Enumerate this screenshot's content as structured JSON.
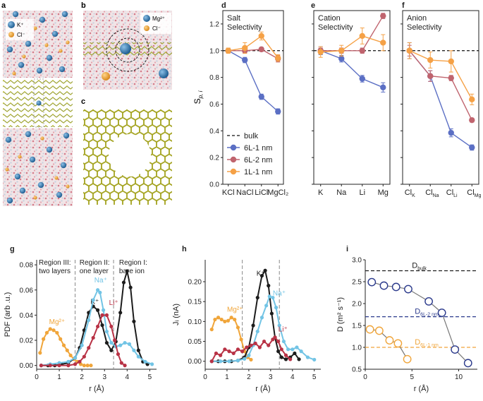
{
  "colors": {
    "blue": "#5b6fc4",
    "red": "#c0646e",
    "orange": "#f5a146",
    "black": "#222222",
    "k_sim": "#2f6fa3",
    "cl_sim": "#e8a23c",
    "mg_orange": "#f0a53a",
    "na_cyan": "#72c4e5",
    "li_red": "#b83245",
    "k_black": "#1c1c1c",
    "navy": "#2b3a8c",
    "mid_gray": "#8a8a8a"
  },
  "panel_labels": {
    "a": "a",
    "b": "b",
    "c": "c",
    "d": "d",
    "e": "e",
    "f": "f",
    "g": "g",
    "h": "h",
    "i": "i"
  },
  "sim": {
    "a_legend": [
      "K⁺",
      "Cl⁻"
    ],
    "b_legend": [
      "Mg²⁺",
      "Cl⁻"
    ]
  },
  "chart_data": [
    {
      "id": "d",
      "type": "line",
      "title": "Salt Selectivity",
      "ylabel": "S_p,i",
      "ylim": [
        0.0,
        1.3
      ],
      "yticks": [
        "0.0",
        "0.2",
        "0.4",
        "0.6",
        "0.8",
        "1.0",
        "1.2"
      ],
      "categories": [
        "KCl",
        "NaCl",
        "LiCl",
        "MgCl₂"
      ],
      "reference": {
        "name": "bulk",
        "value": 1.0
      },
      "series": [
        {
          "name": "6L-1 nm",
          "color": "blue",
          "values": [
            1.0,
            0.93,
            0.655,
            0.545
          ],
          "err": [
            0.015,
            0.02,
            0.02,
            0.02
          ]
        },
        {
          "name": "6L-2 nm",
          "color": "red",
          "values": [
            1.0,
            1.0,
            1.01,
            0.94
          ],
          "err": [
            0.015,
            0.02,
            0.015,
            0.025
          ]
        },
        {
          "name": "1L-1 nm",
          "color": "orange",
          "values": [
            1.0,
            1.02,
            1.11,
            0.945
          ],
          "err": [
            0.02,
            0.04,
            0.03,
            0.025
          ]
        }
      ],
      "legend": [
        "bulk",
        "6L-1 nm",
        "6L-2 nm",
        "1L-1 nm"
      ]
    },
    {
      "id": "e",
      "type": "line",
      "title": "Cation Selectivity",
      "ylim": [
        0.0,
        1.3
      ],
      "categories": [
        "K",
        "Na",
        "Li",
        "Mg"
      ],
      "reference": {
        "name": "bulk",
        "value": 1.0
      },
      "series": [
        {
          "name": "6L-1 nm",
          "color": "blue",
          "values": [
            1.0,
            0.94,
            0.79,
            0.725
          ],
          "err": [
            0.03,
            0.025,
            0.025,
            0.035
          ]
        },
        {
          "name": "6L-2 nm",
          "color": "red",
          "values": [
            1.0,
            1.0,
            1.0,
            1.26
          ],
          "err": [
            0.02,
            0.02,
            0.02,
            0.02
          ]
        },
        {
          "name": "1L-1 nm",
          "color": "orange",
          "values": [
            0.99,
            1.0,
            1.11,
            1.06
          ],
          "err": [
            0.04,
            0.04,
            0.06,
            0.06
          ]
        }
      ]
    },
    {
      "id": "f",
      "type": "line",
      "title": "Anion Selectivity",
      "ylim": [
        0.0,
        1.3
      ],
      "categories": [
        {
          "base": "Cl",
          "sub": "K"
        },
        {
          "base": "Cl",
          "sub": "Na"
        },
        {
          "base": "Cl",
          "sub": "Li"
        },
        {
          "base": "Cl",
          "sub": "Mg"
        }
      ],
      "reference": {
        "name": "bulk",
        "value": 1.0
      },
      "series": [
        {
          "name": "6L-1 nm",
          "color": "blue",
          "values": [
            1.0,
            0.81,
            0.385,
            0.275
          ],
          "err": [
            0.06,
            0.04,
            0.03,
            0.02
          ]
        },
        {
          "name": "6L-2 nm",
          "color": "red",
          "values": [
            1.0,
            0.81,
            0.795,
            0.48
          ],
          "err": [
            0.04,
            0.04,
            0.02,
            0.015
          ]
        },
        {
          "name": "1L-1 nm",
          "color": "orange",
          "values": [
            1.0,
            0.93,
            0.92,
            0.635
          ],
          "err": [
            0.06,
            0.06,
            0.08,
            0.04
          ]
        }
      ]
    },
    {
      "id": "g",
      "type": "line",
      "xlabel": "r (Å)",
      "ylabel": "PDF (arb .u.)",
      "xlim": [
        0.0,
        5.3
      ],
      "ylim": [
        -0.003,
        0.084
      ],
      "xticks": [
        "0",
        "1",
        "2",
        "3",
        "4",
        "5"
      ],
      "yticks": [
        "0.00",
        "0.02",
        "0.04",
        "0.06",
        "0.08"
      ],
      "dividers": [
        1.7,
        3.4
      ],
      "regions": [
        {
          "lines": [
            "Region III:",
            "two layers"
          ],
          "at": 0.0
        },
        {
          "lines": [
            "Region II:",
            "one layer"
          ],
          "at": 1.8
        },
        {
          "lines": [
            "Region I:",
            "bare ion"
          ],
          "at": 3.55
        }
      ],
      "series": [
        {
          "name": "Mg²⁺",
          "color": "mg_orange",
          "label_at": [
            0.55,
            0.033
          ],
          "x": [
            0.15,
            0.3,
            0.45,
            0.6,
            0.75,
            0.9,
            1.05,
            1.2,
            1.35,
            1.5,
            1.65,
            1.8,
            1.95,
            2.1,
            2.25,
            2.4
          ],
          "y": [
            0.01,
            0.021,
            0.026,
            0.029,
            0.028,
            0.026,
            0.021,
            0.016,
            0.012,
            0.008,
            0.005,
            0.003,
            0.001,
            0.0,
            0.0,
            0.0
          ]
        },
        {
          "name": "K⁺",
          "color": "k_black",
          "label_at": [
            2.38,
            0.049
          ],
          "x": [
            0.2,
            0.5,
            0.8,
            1.1,
            1.4,
            1.7,
            1.9,
            2.1,
            2.3,
            2.5,
            2.7,
            2.9,
            3.1,
            3.3,
            3.5,
            3.7,
            3.85,
            4.0,
            4.15,
            4.3,
            4.5,
            4.7,
            4.9
          ],
          "y": [
            0.0,
            0.0,
            0.0,
            0.001,
            0.002,
            0.006,
            0.014,
            0.028,
            0.042,
            0.047,
            0.044,
            0.032,
            0.018,
            0.012,
            0.019,
            0.042,
            0.066,
            0.075,
            0.062,
            0.035,
            0.012,
            0.003,
            0.001
          ]
        },
        {
          "name": "Na⁺",
          "color": "na_cyan",
          "label_at": [
            2.55,
            0.066
          ],
          "x": [
            0.2,
            0.6,
            1.0,
            1.4,
            1.7,
            2.0,
            2.3,
            2.5,
            2.7,
            2.8,
            2.95,
            3.1,
            3.3,
            3.5,
            3.7,
            3.9,
            4.1,
            4.3,
            4.5,
            4.8,
            5.1
          ],
          "y": [
            0.0,
            0.001,
            0.002,
            0.003,
            0.006,
            0.016,
            0.036,
            0.052,
            0.06,
            0.058,
            0.044,
            0.027,
            0.018,
            0.015,
            0.016,
            0.018,
            0.017,
            0.012,
            0.007,
            0.003,
            0.001
          ]
        },
        {
          "name": "Li⁺",
          "color": "li_red",
          "label_at": [
            3.2,
            0.048
          ],
          "x": [
            0.2,
            0.6,
            1.0,
            1.4,
            1.7,
            1.9,
            2.1,
            2.3,
            2.5,
            2.7,
            2.9,
            3.1,
            3.3,
            3.45,
            3.6,
            3.75,
            3.9
          ],
          "y": [
            0.0,
            0.0,
            0.0,
            0.0,
            0.001,
            0.003,
            0.007,
            0.014,
            0.022,
            0.031,
            0.04,
            0.04,
            0.031,
            0.02,
            0.009,
            0.002,
            0.0
          ]
        }
      ]
    },
    {
      "id": "h",
      "type": "line",
      "xlabel": "r (Å)",
      "ylabel": "Jᵢ (nA)",
      "xlim": [
        0.0,
        5.3
      ],
      "ylim": [
        -0.02,
        0.255
      ],
      "xticks": [
        "0",
        "1",
        "2",
        "3",
        "4",
        "5"
      ],
      "yticks": [
        "0.00",
        "0.05",
        "0.10",
        "0.15",
        "0.20"
      ],
      "dividers": [
        1.7,
        3.4
      ],
      "series": [
        {
          "name": "Mg²⁺",
          "color": "mg_orange",
          "label_at": [
            1.0,
            0.125
          ],
          "x": [
            0.3,
            0.45,
            0.6,
            0.75,
            0.9,
            1.05,
            1.2,
            1.35,
            1.5,
            1.65,
            1.8,
            1.95,
            2.1
          ],
          "y": [
            0.08,
            0.105,
            0.11,
            0.105,
            0.1,
            0.102,
            0.11,
            0.105,
            0.085,
            0.055,
            0.025,
            0.01,
            0.004
          ]
        },
        {
          "name": "K⁺",
          "color": "k_black",
          "label_at": [
            2.35,
            0.215
          ],
          "x": [
            0.3,
            0.6,
            0.9,
            1.2,
            1.5,
            1.8,
            2.0,
            2.2,
            2.4,
            2.6,
            2.75,
            2.9,
            3.05,
            3.2,
            3.35,
            3.5,
            3.7,
            3.9,
            4.1,
            4.3
          ],
          "y": [
            0.0,
            0.0,
            0.0,
            0.0,
            0.002,
            0.01,
            0.035,
            0.09,
            0.16,
            0.215,
            0.228,
            0.19,
            0.12,
            0.06,
            0.025,
            0.01,
            0.005,
            0.01,
            0.02,
            0.005
          ]
        },
        {
          "name": "Na⁺",
          "color": "na_cyan",
          "label_at": [
            3.1,
            0.165
          ],
          "x": [
            0.3,
            0.7,
            1.1,
            1.5,
            1.8,
            2.0,
            2.2,
            2.4,
            2.6,
            2.8,
            2.95,
            3.1,
            3.25,
            3.4,
            3.6,
            3.8,
            4.0,
            4.2,
            4.4,
            4.7,
            5.0
          ],
          "y": [
            0.0,
            0.0,
            0.0,
            0.002,
            0.006,
            0.015,
            0.04,
            0.075,
            0.11,
            0.14,
            0.163,
            0.16,
            0.135,
            0.09,
            0.05,
            0.03,
            0.03,
            0.035,
            0.025,
            0.01,
            0.004
          ]
        },
        {
          "name": "Li⁺",
          "color": "li_red",
          "label_at": [
            3.35,
            0.075
          ],
          "x": [
            0.3,
            0.5,
            0.7,
            0.9,
            1.1,
            1.3,
            1.5,
            1.7,
            1.9,
            2.1,
            2.3,
            2.5,
            2.7,
            2.9,
            3.1,
            3.2,
            3.35,
            3.5,
            3.7,
            3.9
          ],
          "y": [
            0.0,
            0.02,
            0.015,
            0.03,
            0.025,
            0.02,
            0.03,
            0.025,
            0.035,
            0.04,
            0.045,
            0.035,
            0.05,
            0.04,
            0.055,
            0.06,
            0.05,
            0.03,
            0.015,
            0.005
          ]
        }
      ]
    },
    {
      "id": "i",
      "type": "line",
      "xlabel": "r (Å)",
      "ylabel": "D (m² s⁻¹)",
      "xlim": [
        0.0,
        12.0
      ],
      "ylim": [
        0.5,
        3.0
      ],
      "xticks": [
        "0",
        "5",
        "10"
      ],
      "xtick_values": [
        0,
        5,
        10
      ],
      "yticks": [
        "0.5",
        "1.0",
        "1.5",
        "2.0",
        "2.5",
        "3.0"
      ],
      "references": [
        {
          "name": "D",
          "sub": "bulk",
          "value": 2.75,
          "color": "k_black",
          "label_at": 5.0
        },
        {
          "name": "D",
          "sub": "6L-2 nm",
          "value": 1.7,
          "color": "navy",
          "label_at": 5.3
        },
        {
          "name": "D",
          "sub": "6L-1 nm",
          "value": 1.0,
          "color": "mg_orange",
          "label_at": 5.3
        }
      ],
      "series": [
        {
          "name": "6L-2 nm",
          "color": "navy",
          "x": [
            0.7,
            2.0,
            3.3,
            4.6,
            6.8,
            8.2,
            9.6,
            11.0
          ],
          "y": [
            2.49,
            2.41,
            2.38,
            2.33,
            2.05,
            1.79,
            0.95,
            0.64
          ]
        },
        {
          "name": "6L-1 nm",
          "color": "mg_orange",
          "x": [
            0.5,
            1.5,
            2.6,
            3.5,
            4.5
          ],
          "y": [
            1.41,
            1.38,
            1.16,
            1.09,
            0.73
          ]
        }
      ]
    }
  ]
}
